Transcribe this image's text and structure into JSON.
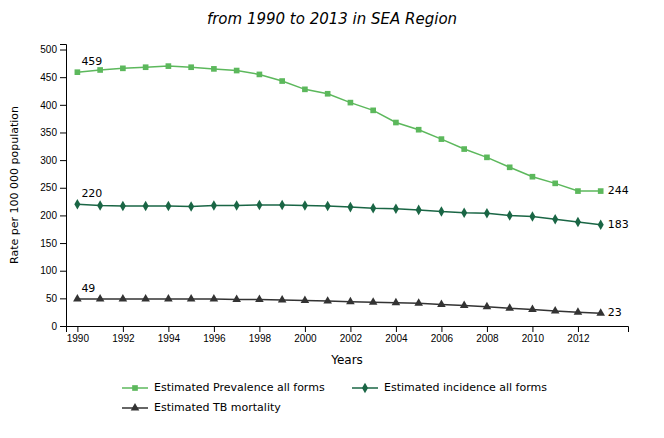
{
  "chart_data": {
    "type": "line",
    "title": "from 1990 to 2013 in SEA Region",
    "x_label": "Years",
    "y_label": "Rate per 100 000 population",
    "x": [
      1990,
      1991,
      1992,
      1993,
      1994,
      1995,
      1996,
      1997,
      1998,
      1999,
      2000,
      2001,
      2002,
      2003,
      2004,
      2005,
      2006,
      2007,
      2008,
      2009,
      2010,
      2011,
      2012,
      2013
    ],
    "series": [
      {
        "name": "Estimated Prevalence all forms",
        "color": "#5cb85c",
        "marker": "square",
        "values": [
          459,
          463,
          466,
          468,
          470,
          468,
          465,
          462,
          455,
          443,
          428,
          420,
          404,
          390,
          368,
          355,
          338,
          320,
          305,
          287,
          270,
          258,
          244,
          244
        ]
      },
      {
        "name": "Estimated incidence all forms",
        "color": "#1a6645",
        "marker": "diamond",
        "values": [
          220,
          218,
          217,
          217,
          217,
          216,
          218,
          218,
          219,
          219,
          218,
          217,
          215,
          213,
          212,
          210,
          207,
          205,
          204,
          200,
          198,
          193,
          188,
          183
        ]
      },
      {
        "name": "Estimated TB mortality",
        "color": "#333333",
        "marker": "triangle",
        "values": [
          49,
          49,
          49,
          49,
          49,
          49,
          49,
          48,
          48,
          47,
          46,
          45,
          44,
          43,
          42,
          41,
          39,
          37,
          35,
          32,
          30,
          27,
          25,
          23
        ]
      }
    ],
    "annotations": [
      {
        "text": "459",
        "x": 1990,
        "y": 459
      },
      {
        "text": "220",
        "x": 1990,
        "y": 220
      },
      {
        "text": "49",
        "x": 1990,
        "y": 49
      },
      {
        "text": "244",
        "x": 2013,
        "y": 244
      },
      {
        "text": "183",
        "x": 2013,
        "y": 183
      },
      {
        "text": "23",
        "x": 2013,
        "y": 23
      }
    ],
    "xlim": [
      1989.5,
      2014.2
    ],
    "xticks": [
      1990,
      1992,
      1994,
      1996,
      1998,
      2000,
      2002,
      2004,
      2006,
      2008,
      2010,
      2012
    ],
    "ylim": [
      0,
      510
    ],
    "yticks": [
      0,
      50,
      100,
      150,
      200,
      250,
      300,
      350,
      400,
      450,
      500
    ],
    "grid": false,
    "legend": "bottom"
  }
}
